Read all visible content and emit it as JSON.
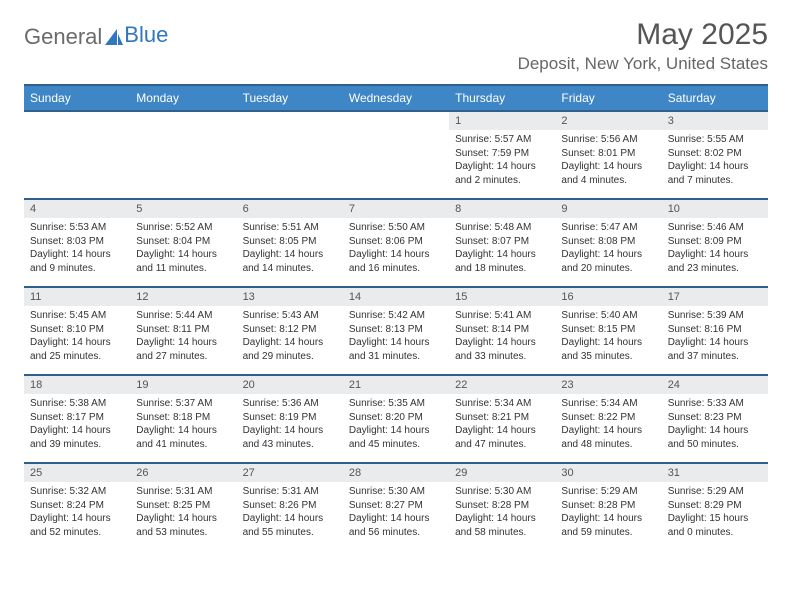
{
  "logo": {
    "text_general": "General",
    "text_blue": "Blue"
  },
  "header": {
    "month_title": "May 2025",
    "location": "Deposit, New York, United States"
  },
  "colors": {
    "header_bg": "#3f86c6",
    "header_border": "#2f5f8a",
    "daynum_bg": "#e9ebec",
    "text_primary": "#333333",
    "text_muted": "#666666",
    "page_bg": "#ffffff"
  },
  "weekdays": [
    "Sunday",
    "Monday",
    "Tuesday",
    "Wednesday",
    "Thursday",
    "Friday",
    "Saturday"
  ],
  "weeks": [
    [
      {
        "empty": true
      },
      {
        "empty": true
      },
      {
        "empty": true
      },
      {
        "empty": true
      },
      {
        "day": "1",
        "sunrise": "Sunrise: 5:57 AM",
        "sunset": "Sunset: 7:59 PM",
        "daylight1": "Daylight: 14 hours",
        "daylight2": "and 2 minutes."
      },
      {
        "day": "2",
        "sunrise": "Sunrise: 5:56 AM",
        "sunset": "Sunset: 8:01 PM",
        "daylight1": "Daylight: 14 hours",
        "daylight2": "and 4 minutes."
      },
      {
        "day": "3",
        "sunrise": "Sunrise: 5:55 AM",
        "sunset": "Sunset: 8:02 PM",
        "daylight1": "Daylight: 14 hours",
        "daylight2": "and 7 minutes."
      }
    ],
    [
      {
        "day": "4",
        "sunrise": "Sunrise: 5:53 AM",
        "sunset": "Sunset: 8:03 PM",
        "daylight1": "Daylight: 14 hours",
        "daylight2": "and 9 minutes."
      },
      {
        "day": "5",
        "sunrise": "Sunrise: 5:52 AM",
        "sunset": "Sunset: 8:04 PM",
        "daylight1": "Daylight: 14 hours",
        "daylight2": "and 11 minutes."
      },
      {
        "day": "6",
        "sunrise": "Sunrise: 5:51 AM",
        "sunset": "Sunset: 8:05 PM",
        "daylight1": "Daylight: 14 hours",
        "daylight2": "and 14 minutes."
      },
      {
        "day": "7",
        "sunrise": "Sunrise: 5:50 AM",
        "sunset": "Sunset: 8:06 PM",
        "daylight1": "Daylight: 14 hours",
        "daylight2": "and 16 minutes."
      },
      {
        "day": "8",
        "sunrise": "Sunrise: 5:48 AM",
        "sunset": "Sunset: 8:07 PM",
        "daylight1": "Daylight: 14 hours",
        "daylight2": "and 18 minutes."
      },
      {
        "day": "9",
        "sunrise": "Sunrise: 5:47 AM",
        "sunset": "Sunset: 8:08 PM",
        "daylight1": "Daylight: 14 hours",
        "daylight2": "and 20 minutes."
      },
      {
        "day": "10",
        "sunrise": "Sunrise: 5:46 AM",
        "sunset": "Sunset: 8:09 PM",
        "daylight1": "Daylight: 14 hours",
        "daylight2": "and 23 minutes."
      }
    ],
    [
      {
        "day": "11",
        "sunrise": "Sunrise: 5:45 AM",
        "sunset": "Sunset: 8:10 PM",
        "daylight1": "Daylight: 14 hours",
        "daylight2": "and 25 minutes."
      },
      {
        "day": "12",
        "sunrise": "Sunrise: 5:44 AM",
        "sunset": "Sunset: 8:11 PM",
        "daylight1": "Daylight: 14 hours",
        "daylight2": "and 27 minutes."
      },
      {
        "day": "13",
        "sunrise": "Sunrise: 5:43 AM",
        "sunset": "Sunset: 8:12 PM",
        "daylight1": "Daylight: 14 hours",
        "daylight2": "and 29 minutes."
      },
      {
        "day": "14",
        "sunrise": "Sunrise: 5:42 AM",
        "sunset": "Sunset: 8:13 PM",
        "daylight1": "Daylight: 14 hours",
        "daylight2": "and 31 minutes."
      },
      {
        "day": "15",
        "sunrise": "Sunrise: 5:41 AM",
        "sunset": "Sunset: 8:14 PM",
        "daylight1": "Daylight: 14 hours",
        "daylight2": "and 33 minutes."
      },
      {
        "day": "16",
        "sunrise": "Sunrise: 5:40 AM",
        "sunset": "Sunset: 8:15 PM",
        "daylight1": "Daylight: 14 hours",
        "daylight2": "and 35 minutes."
      },
      {
        "day": "17",
        "sunrise": "Sunrise: 5:39 AM",
        "sunset": "Sunset: 8:16 PM",
        "daylight1": "Daylight: 14 hours",
        "daylight2": "and 37 minutes."
      }
    ],
    [
      {
        "day": "18",
        "sunrise": "Sunrise: 5:38 AM",
        "sunset": "Sunset: 8:17 PM",
        "daylight1": "Daylight: 14 hours",
        "daylight2": "and 39 minutes."
      },
      {
        "day": "19",
        "sunrise": "Sunrise: 5:37 AM",
        "sunset": "Sunset: 8:18 PM",
        "daylight1": "Daylight: 14 hours",
        "daylight2": "and 41 minutes."
      },
      {
        "day": "20",
        "sunrise": "Sunrise: 5:36 AM",
        "sunset": "Sunset: 8:19 PM",
        "daylight1": "Daylight: 14 hours",
        "daylight2": "and 43 minutes."
      },
      {
        "day": "21",
        "sunrise": "Sunrise: 5:35 AM",
        "sunset": "Sunset: 8:20 PM",
        "daylight1": "Daylight: 14 hours",
        "daylight2": "and 45 minutes."
      },
      {
        "day": "22",
        "sunrise": "Sunrise: 5:34 AM",
        "sunset": "Sunset: 8:21 PM",
        "daylight1": "Daylight: 14 hours",
        "daylight2": "and 47 minutes."
      },
      {
        "day": "23",
        "sunrise": "Sunrise: 5:34 AM",
        "sunset": "Sunset: 8:22 PM",
        "daylight1": "Daylight: 14 hours",
        "daylight2": "and 48 minutes."
      },
      {
        "day": "24",
        "sunrise": "Sunrise: 5:33 AM",
        "sunset": "Sunset: 8:23 PM",
        "daylight1": "Daylight: 14 hours",
        "daylight2": "and 50 minutes."
      }
    ],
    [
      {
        "day": "25",
        "sunrise": "Sunrise: 5:32 AM",
        "sunset": "Sunset: 8:24 PM",
        "daylight1": "Daylight: 14 hours",
        "daylight2": "and 52 minutes."
      },
      {
        "day": "26",
        "sunrise": "Sunrise: 5:31 AM",
        "sunset": "Sunset: 8:25 PM",
        "daylight1": "Daylight: 14 hours",
        "daylight2": "and 53 minutes."
      },
      {
        "day": "27",
        "sunrise": "Sunrise: 5:31 AM",
        "sunset": "Sunset: 8:26 PM",
        "daylight1": "Daylight: 14 hours",
        "daylight2": "and 55 minutes."
      },
      {
        "day": "28",
        "sunrise": "Sunrise: 5:30 AM",
        "sunset": "Sunset: 8:27 PM",
        "daylight1": "Daylight: 14 hours",
        "daylight2": "and 56 minutes."
      },
      {
        "day": "29",
        "sunrise": "Sunrise: 5:30 AM",
        "sunset": "Sunset: 8:28 PM",
        "daylight1": "Daylight: 14 hours",
        "daylight2": "and 58 minutes."
      },
      {
        "day": "30",
        "sunrise": "Sunrise: 5:29 AM",
        "sunset": "Sunset: 8:28 PM",
        "daylight1": "Daylight: 14 hours",
        "daylight2": "and 59 minutes."
      },
      {
        "day": "31",
        "sunrise": "Sunrise: 5:29 AM",
        "sunset": "Sunset: 8:29 PM",
        "daylight1": "Daylight: 15 hours",
        "daylight2": "and 0 minutes."
      }
    ]
  ]
}
